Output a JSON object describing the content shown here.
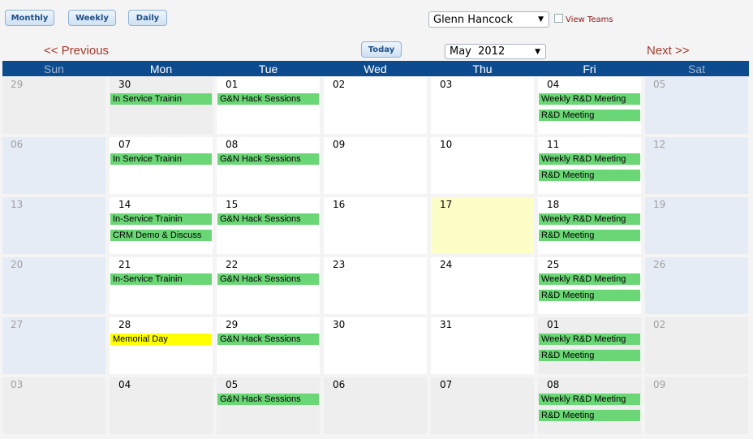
{
  "toolbar": {
    "monthly": "Monthly",
    "weekly": "Weekly",
    "daily": "Daily",
    "user": "Glenn Hancock",
    "view_teams": "View Teams",
    "previous": "<< Previous",
    "today": "Today",
    "month": "May  2012",
    "next": "Next >>"
  },
  "days": [
    "Sun",
    "Mon",
    "Tue",
    "Wed",
    "Thu",
    "Fri",
    "Sat"
  ],
  "colors": {
    "header": "#0d4b8f",
    "today": "#fdfdc7",
    "event": "#6bd675",
    "holiday": "#ffff00",
    "weekend": "#e6ecf6",
    "other_month": "#eeeeee",
    "current": "#ffffff"
  },
  "weeks": [
    [
      {
        "day": "29",
        "kind": "dim",
        "events": []
      },
      {
        "day": "30",
        "kind": "other",
        "events": [
          {
            "t": "In Service Trainin"
          }
        ]
      },
      {
        "day": "01",
        "kind": "cur",
        "events": [
          {
            "t": "G&N Hack Sessions"
          }
        ]
      },
      {
        "day": "02",
        "kind": "cur",
        "events": []
      },
      {
        "day": "03",
        "kind": "cur",
        "events": []
      },
      {
        "day": "04",
        "kind": "cur",
        "events": [
          {
            "t": "Weekly R&D Meeting"
          },
          {
            "t": "R&D Meeting"
          }
        ]
      },
      {
        "day": "05",
        "kind": "we",
        "events": []
      }
    ],
    [
      {
        "day": "06",
        "kind": "we",
        "events": []
      },
      {
        "day": "07",
        "kind": "cur",
        "events": [
          {
            "t": "In Service Trainin"
          }
        ]
      },
      {
        "day": "08",
        "kind": "cur",
        "events": [
          {
            "t": "G&N Hack Sessions"
          }
        ]
      },
      {
        "day": "09",
        "kind": "cur",
        "events": []
      },
      {
        "day": "10",
        "kind": "cur",
        "events": []
      },
      {
        "day": "11",
        "kind": "cur",
        "events": [
          {
            "t": "Weekly R&D Meeting"
          },
          {
            "t": "R&D Meeting"
          }
        ]
      },
      {
        "day": "12",
        "kind": "we",
        "events": []
      }
    ],
    [
      {
        "day": "13",
        "kind": "we",
        "events": []
      },
      {
        "day": "14",
        "kind": "cur",
        "events": [
          {
            "t": "In-Service Trainin"
          },
          {
            "t": "CRM Demo & Discuss"
          }
        ]
      },
      {
        "day": "15",
        "kind": "cur",
        "events": [
          {
            "t": "G&N Hack Sessions"
          }
        ]
      },
      {
        "day": "16",
        "kind": "cur",
        "events": []
      },
      {
        "day": "17",
        "kind": "today",
        "events": []
      },
      {
        "day": "18",
        "kind": "cur",
        "events": [
          {
            "t": "Weekly R&D Meeting"
          },
          {
            "t": "R&D Meeting"
          }
        ]
      },
      {
        "day": "19",
        "kind": "we",
        "events": []
      }
    ],
    [
      {
        "day": "20",
        "kind": "we",
        "events": []
      },
      {
        "day": "21",
        "kind": "cur",
        "events": [
          {
            "t": "In-Service Trainin"
          }
        ]
      },
      {
        "day": "22",
        "kind": "cur",
        "events": [
          {
            "t": "G&N Hack Sessions"
          }
        ]
      },
      {
        "day": "23",
        "kind": "cur",
        "events": []
      },
      {
        "day": "24",
        "kind": "cur",
        "events": []
      },
      {
        "day": "25",
        "kind": "cur",
        "events": [
          {
            "t": "Weekly R&D Meeting"
          },
          {
            "t": "R&D Meeting"
          }
        ]
      },
      {
        "day": "26",
        "kind": "we",
        "events": []
      }
    ],
    [
      {
        "day": "27",
        "kind": "we",
        "events": []
      },
      {
        "day": "28",
        "kind": "cur",
        "events": [
          {
            "t": "Memorial Day",
            "holiday": true
          }
        ]
      },
      {
        "day": "29",
        "kind": "cur",
        "events": [
          {
            "t": "G&N Hack Sessions"
          }
        ]
      },
      {
        "day": "30",
        "kind": "cur",
        "events": []
      },
      {
        "day": "31",
        "kind": "cur",
        "events": []
      },
      {
        "day": "01",
        "kind": "other",
        "events": [
          {
            "t": "Weekly R&D Meeting"
          },
          {
            "t": "R&D Meeting"
          }
        ]
      },
      {
        "day": "02",
        "kind": "dim",
        "events": []
      }
    ],
    [
      {
        "day": "03",
        "kind": "dim",
        "events": []
      },
      {
        "day": "04",
        "kind": "other",
        "events": []
      },
      {
        "day": "05",
        "kind": "other",
        "events": [
          {
            "t": "G&N Hack Sessions"
          }
        ]
      },
      {
        "day": "06",
        "kind": "other",
        "events": []
      },
      {
        "day": "07",
        "kind": "other",
        "events": []
      },
      {
        "day": "08",
        "kind": "other",
        "events": [
          {
            "t": "Weekly R&D Meeting"
          },
          {
            "t": "R&D Meeting"
          }
        ]
      },
      {
        "day": "09",
        "kind": "dim",
        "events": []
      }
    ]
  ]
}
